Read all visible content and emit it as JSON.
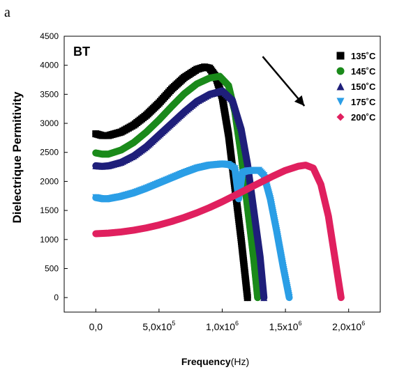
{
  "panel_label": "a",
  "chart_data": {
    "type": "line",
    "title": "",
    "annotation": "BT",
    "xlabel": "Frequency",
    "xlabel_unit": "(Hz)",
    "ylabel": "Dielectrique Permitivity",
    "xlim": [
      -250000,
      2250000
    ],
    "ylim": [
      -250,
      4500
    ],
    "x_ticks": [
      {
        "value": 0,
        "mantissa": "0,0",
        "exp": ""
      },
      {
        "value": 500000,
        "mantissa": "5,0x10",
        "exp": "5"
      },
      {
        "value": 1000000,
        "mantissa": "1,0x10",
        "exp": "6"
      },
      {
        "value": 1500000,
        "mantissa": "1,5x10",
        "exp": "6"
      },
      {
        "value": 2000000,
        "mantissa": "2,0x10",
        "exp": "6"
      }
    ],
    "y_ticks": [
      0,
      500,
      1000,
      1500,
      2000,
      2500,
      3000,
      3500,
      4000,
      4500
    ],
    "grid": false,
    "legend_position": "top-right",
    "series": [
      {
        "name": "135˚C",
        "color": "#000000",
        "marker": "square",
        "points": [
          [
            0,
            2820
          ],
          [
            50000,
            2790
          ],
          [
            100000,
            2790
          ],
          [
            200000,
            2850
          ],
          [
            300000,
            2970
          ],
          [
            400000,
            3140
          ],
          [
            500000,
            3350
          ],
          [
            600000,
            3590
          ],
          [
            700000,
            3790
          ],
          [
            800000,
            3930
          ],
          [
            860000,
            3970
          ],
          [
            900000,
            3950
          ],
          [
            950000,
            3800
          ],
          [
            1000000,
            3450
          ],
          [
            1050000,
            2800
          ],
          [
            1100000,
            1900
          ],
          [
            1150000,
            1000
          ],
          [
            1200000,
            0
          ]
        ]
      },
      {
        "name": "145˚C",
        "color": "#1a8a1a",
        "marker": "circle",
        "points": [
          [
            0,
            2490
          ],
          [
            50000,
            2470
          ],
          [
            100000,
            2470
          ],
          [
            200000,
            2540
          ],
          [
            300000,
            2670
          ],
          [
            400000,
            2850
          ],
          [
            500000,
            3060
          ],
          [
            600000,
            3290
          ],
          [
            700000,
            3510
          ],
          [
            800000,
            3680
          ],
          [
            900000,
            3780
          ],
          [
            980000,
            3810
          ],
          [
            1050000,
            3650
          ],
          [
            1100000,
            3200
          ],
          [
            1150000,
            2450
          ],
          [
            1200000,
            1550
          ],
          [
            1250000,
            650
          ],
          [
            1280000,
            0
          ]
        ]
      },
      {
        "name": "150˚C",
        "color": "#1f1f7a",
        "marker": "triangle-up",
        "points": [
          [
            0,
            2270
          ],
          [
            50000,
            2260
          ],
          [
            100000,
            2270
          ],
          [
            200000,
            2330
          ],
          [
            300000,
            2440
          ],
          [
            400000,
            2600
          ],
          [
            500000,
            2800
          ],
          [
            600000,
            3000
          ],
          [
            700000,
            3200
          ],
          [
            800000,
            3380
          ],
          [
            900000,
            3500
          ],
          [
            1000000,
            3560
          ],
          [
            1080000,
            3400
          ],
          [
            1150000,
            2900
          ],
          [
            1200000,
            2300
          ],
          [
            1250000,
            1500
          ],
          [
            1300000,
            700
          ],
          [
            1330000,
            0
          ]
        ]
      },
      {
        "name": "175˚C",
        "color": "#2b9ee6",
        "marker": "triangle-down",
        "points": [
          [
            0,
            1720
          ],
          [
            50000,
            1700
          ],
          [
            100000,
            1700
          ],
          [
            200000,
            1740
          ],
          [
            300000,
            1800
          ],
          [
            400000,
            1880
          ],
          [
            500000,
            1970
          ],
          [
            600000,
            2060
          ],
          [
            700000,
            2150
          ],
          [
            800000,
            2230
          ],
          [
            900000,
            2280
          ],
          [
            1000000,
            2300
          ],
          [
            1050000,
            2290
          ],
          [
            1100000,
            2220
          ],
          [
            1130000,
            1700
          ],
          [
            1160000,
            2150
          ],
          [
            1200000,
            2180
          ],
          [
            1250000,
            2190
          ],
          [
            1290000,
            2190
          ],
          [
            1330000,
            2100
          ],
          [
            1380000,
            1700
          ],
          [
            1430000,
            1150
          ],
          [
            1480000,
            550
          ],
          [
            1530000,
            0
          ]
        ]
      },
      {
        "name": "200˚C",
        "color": "#e0205f",
        "marker": "diamond",
        "points": [
          [
            0,
            1100
          ],
          [
            100000,
            1110
          ],
          [
            200000,
            1130
          ],
          [
            300000,
            1160
          ],
          [
            400000,
            1200
          ],
          [
            500000,
            1250
          ],
          [
            600000,
            1310
          ],
          [
            700000,
            1380
          ],
          [
            800000,
            1460
          ],
          [
            900000,
            1550
          ],
          [
            1000000,
            1650
          ],
          [
            1100000,
            1760
          ],
          [
            1200000,
            1870
          ],
          [
            1300000,
            1980
          ],
          [
            1400000,
            2090
          ],
          [
            1500000,
            2190
          ],
          [
            1600000,
            2260
          ],
          [
            1660000,
            2280
          ],
          [
            1720000,
            2230
          ],
          [
            1780000,
            1950
          ],
          [
            1840000,
            1400
          ],
          [
            1890000,
            700
          ],
          [
            1940000,
            0
          ]
        ]
      }
    ],
    "arrow": {
      "from": [
        1320000,
        4150
      ],
      "to": [
        1650000,
        3300
      ]
    }
  }
}
